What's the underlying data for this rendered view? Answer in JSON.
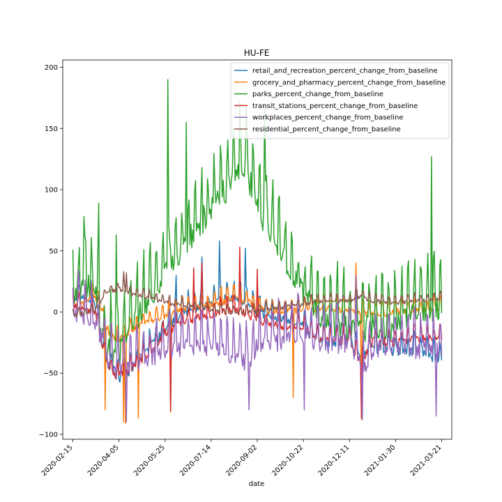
{
  "chart_data": {
    "type": "line",
    "title": "HU-FE",
    "xlabel": "date",
    "ylabel": "",
    "x_start": "2020-02-15",
    "x_end": "2021-03-21",
    "xlim": [
      "2020-02-04",
      "2021-04-01"
    ],
    "ylim": [
      -104,
      206
    ],
    "x_ticks": [
      "2020-02-15",
      "2020-04-05",
      "2020-05-25",
      "2020-07-14",
      "2020-09-02",
      "2020-10-22",
      "2020-12-11",
      "2021-01-30",
      "2021-03-21"
    ],
    "y_ticks": [
      -100,
      -50,
      0,
      50,
      100,
      150,
      200
    ],
    "legend_position": "upper right",
    "grid": false,
    "series": [
      {
        "name": "retail_and_recreation_percent_change_from_baseline",
        "color": "#1f77b4",
        "base_points": [
          [
            "2020-02-15",
            12
          ],
          [
            "2020-03-01",
            14
          ],
          [
            "2020-03-10",
            8
          ],
          [
            "2020-03-16",
            -20
          ],
          [
            "2020-03-25",
            -40
          ],
          [
            "2020-04-05",
            -50
          ],
          [
            "2020-04-20",
            -45
          ],
          [
            "2020-05-01",
            -35
          ],
          [
            "2020-05-15",
            -20
          ],
          [
            "2020-06-01",
            -5
          ],
          [
            "2020-06-20",
            5
          ],
          [
            "2020-07-14",
            10
          ],
          [
            "2020-08-10",
            15
          ],
          [
            "2020-08-20",
            12
          ],
          [
            "2020-09-02",
            2
          ],
          [
            "2020-10-01",
            -2
          ],
          [
            "2020-10-22",
            -8
          ],
          [
            "2020-11-11",
            -22
          ],
          [
            "2020-12-11",
            -20
          ],
          [
            "2020-12-24",
            -35
          ],
          [
            "2021-01-05",
            -25
          ],
          [
            "2021-01-30",
            -30
          ],
          [
            "2021-02-20",
            -28
          ],
          [
            "2021-03-21",
            -36
          ]
        ],
        "amp": 10,
        "spikes": [
          [
            "2020-04-12",
            -55
          ],
          [
            "2020-06-06",
            30
          ],
          [
            "2020-07-04",
            45
          ],
          [
            "2020-07-23",
            58
          ],
          [
            "2020-08-20",
            52
          ],
          [
            "2020-12-24",
            -80
          ]
        ]
      },
      {
        "name": "grocery_and_pharmacy_percent_change_from_baseline",
        "color": "#ff7f0e",
        "base_points": [
          [
            "2020-02-15",
            8
          ],
          [
            "2020-03-01",
            10
          ],
          [
            "2020-03-10",
            15
          ],
          [
            "2020-03-16",
            8
          ],
          [
            "2020-03-25",
            -15
          ],
          [
            "2020-04-05",
            -20
          ],
          [
            "2020-04-20",
            -12
          ],
          [
            "2020-05-10",
            -5
          ],
          [
            "2020-06-01",
            2
          ],
          [
            "2020-06-20",
            5
          ],
          [
            "2020-07-14",
            8
          ],
          [
            "2020-08-10",
            14
          ],
          [
            "2020-08-25",
            10
          ],
          [
            "2020-09-02",
            4
          ],
          [
            "2020-10-01",
            3
          ],
          [
            "2020-10-22",
            4
          ],
          [
            "2020-11-20",
            5
          ],
          [
            "2020-12-11",
            3
          ],
          [
            "2021-01-05",
            0
          ],
          [
            "2021-01-30",
            2
          ],
          [
            "2021-03-21",
            5
          ]
        ],
        "amp": 7,
        "spikes": [
          [
            "2020-03-21",
            -80
          ],
          [
            "2020-04-10",
            -90
          ],
          [
            "2020-04-12",
            -91
          ],
          [
            "2020-04-26",
            -87
          ],
          [
            "2020-05-31",
            -82
          ],
          [
            "2020-10-11",
            -70
          ],
          [
            "2020-12-18",
            40
          ],
          [
            "2020-12-24",
            -88
          ]
        ]
      },
      {
        "name": "parks_percent_change_from_baseline",
        "color": "#2ca02c",
        "base_points": [
          [
            "2020-02-15",
            20
          ],
          [
            "2020-03-01",
            30
          ],
          [
            "2020-03-10",
            20
          ],
          [
            "2020-03-18",
            -10
          ],
          [
            "2020-04-01",
            -30
          ],
          [
            "2020-04-20",
            0
          ],
          [
            "2020-05-10",
            20
          ],
          [
            "2020-05-25",
            40
          ],
          [
            "2020-06-15",
            60
          ],
          [
            "2020-07-01",
            80
          ],
          [
            "2020-07-14",
            95
          ],
          [
            "2020-08-01",
            110
          ],
          [
            "2020-08-20",
            130
          ],
          [
            "2020-09-02",
            95
          ],
          [
            "2020-09-20",
            70
          ],
          [
            "2020-10-10",
            40
          ],
          [
            "2020-10-22",
            20
          ],
          [
            "2020-11-11",
            5
          ],
          [
            "2020-12-11",
            -5
          ],
          [
            "2021-01-05",
            -5
          ],
          [
            "2021-01-30",
            0
          ],
          [
            "2021-02-20",
            10
          ],
          [
            "2021-03-21",
            15
          ]
        ],
        "amp": 28,
        "spikes": [
          [
            "2020-02-27",
            78
          ],
          [
            "2020-03-14",
            89
          ],
          [
            "2020-04-02",
            63
          ],
          [
            "2020-05-28",
            190
          ],
          [
            "2020-06-17",
            155
          ],
          [
            "2020-08-14",
            172
          ],
          [
            "2020-09-10",
            170
          ],
          [
            "2020-03-22",
            -40
          ],
          [
            "2021-03-10",
            127
          ]
        ]
      },
      {
        "name": "transit_stations_percent_change_from_baseline",
        "color": "#d62728",
        "base_points": [
          [
            "2020-02-15",
            8
          ],
          [
            "2020-03-01",
            5
          ],
          [
            "2020-03-10",
            2
          ],
          [
            "2020-03-16",
            -20
          ],
          [
            "2020-03-25",
            -45
          ],
          [
            "2020-04-05",
            -50
          ],
          [
            "2020-04-20",
            -42
          ],
          [
            "2020-05-10",
            -30
          ],
          [
            "2020-05-25",
            -15
          ],
          [
            "2020-06-15",
            -5
          ],
          [
            "2020-07-14",
            0
          ],
          [
            "2020-08-10",
            5
          ],
          [
            "2020-09-02",
            -5
          ],
          [
            "2020-10-01",
            -10
          ],
          [
            "2020-10-22",
            -12
          ],
          [
            "2020-11-11",
            -20
          ],
          [
            "2020-12-11",
            -22
          ],
          [
            "2020-12-24",
            -40
          ],
          [
            "2021-01-05",
            -22
          ],
          [
            "2021-01-30",
            -22
          ],
          [
            "2021-03-21",
            -18
          ]
        ],
        "amp": 8,
        "spikes": [
          [
            "2020-06-25",
            36
          ],
          [
            "2020-07-04",
            40
          ],
          [
            "2020-08-14",
            53
          ],
          [
            "2020-09-02",
            35
          ],
          [
            "2020-05-31",
            -81
          ],
          [
            "2020-12-24",
            -86
          ]
        ]
      },
      {
        "name": "workplaces_percent_change_from_baseline",
        "color": "#9467bd",
        "base_points": [
          [
            "2020-02-15",
            3
          ],
          [
            "2020-03-01",
            2
          ],
          [
            "2020-03-16",
            -15
          ],
          [
            "2020-03-25",
            -35
          ],
          [
            "2020-04-05",
            -40
          ],
          [
            "2020-04-20",
            -38
          ],
          [
            "2020-05-10",
            -30
          ],
          [
            "2020-05-25",
            -25
          ],
          [
            "2020-06-15",
            -22
          ],
          [
            "2020-07-14",
            -22
          ],
          [
            "2020-08-10",
            -30
          ],
          [
            "2020-08-25",
            -35
          ],
          [
            "2020-09-02",
            -20
          ],
          [
            "2020-10-01",
            -15
          ],
          [
            "2020-10-22",
            -12
          ],
          [
            "2020-11-11",
            -18
          ],
          [
            "2020-12-11",
            -20
          ],
          [
            "2020-12-24",
            -40
          ],
          [
            "2021-01-05",
            -25
          ],
          [
            "2021-01-30",
            -22
          ],
          [
            "2021-03-21",
            -25
          ]
        ],
        "amp": 20,
        "spikes": [
          [
            "2020-04-13",
            -90
          ],
          [
            "2020-08-24",
            -80
          ],
          [
            "2020-10-23",
            -80
          ],
          [
            "2020-12-25",
            -88
          ],
          [
            "2021-03-15",
            -85
          ],
          [
            "2020-12-18",
            30
          ]
        ]
      },
      {
        "name": "residential_percent_change_from_baseline",
        "color": "#8c564b",
        "base_points": [
          [
            "2020-02-15",
            -2
          ],
          [
            "2020-03-01",
            0
          ],
          [
            "2020-03-10",
            2
          ],
          [
            "2020-03-16",
            10
          ],
          [
            "2020-03-25",
            18
          ],
          [
            "2020-04-05",
            20
          ],
          [
            "2020-04-20",
            16
          ],
          [
            "2020-05-10",
            12
          ],
          [
            "2020-06-01",
            8
          ],
          [
            "2020-07-14",
            3
          ],
          [
            "2020-08-10",
            0
          ],
          [
            "2020-09-02",
            2
          ],
          [
            "2020-10-01",
            5
          ],
          [
            "2020-10-22",
            7
          ],
          [
            "2020-11-11",
            10
          ],
          [
            "2020-12-11",
            10
          ],
          [
            "2020-12-24",
            14
          ],
          [
            "2021-01-05",
            10
          ],
          [
            "2021-01-30",
            9
          ],
          [
            "2021-03-21",
            12
          ]
        ],
        "amp": 4,
        "spikes": [
          [
            "2020-04-10",
            33
          ],
          [
            "2020-04-13",
            32
          ]
        ]
      }
    ]
  }
}
